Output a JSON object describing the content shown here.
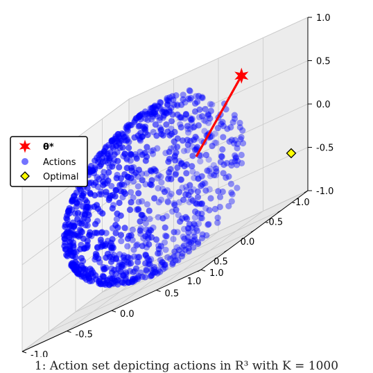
{
  "chart_data": {
    "type": "scatter",
    "projection": "3d",
    "title": "",
    "xlabel": "",
    "ylabel": "",
    "zlabel": "",
    "xlim": [
      -1.0,
      1.0
    ],
    "ylim": [
      -1.0,
      1.0
    ],
    "zlim": [
      -1.0,
      1.0
    ],
    "x_ticks": [
      "-1.0",
      "-0.5",
      "0.0",
      "0.5",
      "1.0"
    ],
    "y_ticks": [
      "-1.0",
      "-0.5",
      "0.0",
      "0.5",
      "1.0"
    ],
    "z_ticks": [
      "-1.0",
      "-0.5",
      "0.0",
      "0.5",
      "1.0"
    ],
    "grid": true,
    "legend": {
      "position": "center-left",
      "entries": [
        "θ*",
        "Actions",
        "Optimal"
      ]
    },
    "colors": {
      "theta": "#ff0000",
      "actions": "#0000ff",
      "optimal": "#ffff00",
      "line": "#ff0000"
    },
    "series": [
      {
        "name": "θ*",
        "marker": "star",
        "points": [
          [
            0.0,
            0.7,
            0.7
          ]
        ]
      },
      {
        "name": "Actions",
        "marker": "circle",
        "distribution": "points on the unit sphere, one quadrant removed",
        "count": 1000
      },
      {
        "name": "Optimal",
        "marker": "diamond",
        "points": [
          [
            0.0,
            0.7071,
            0.7071
          ]
        ]
      }
    ],
    "line": {
      "from": [
        0.0,
        0.0,
        0.0
      ],
      "to": [
        0.0,
        0.7,
        0.7
      ]
    }
  },
  "caption_text": "1: Action set depicting actions in R³ with K = 1000"
}
